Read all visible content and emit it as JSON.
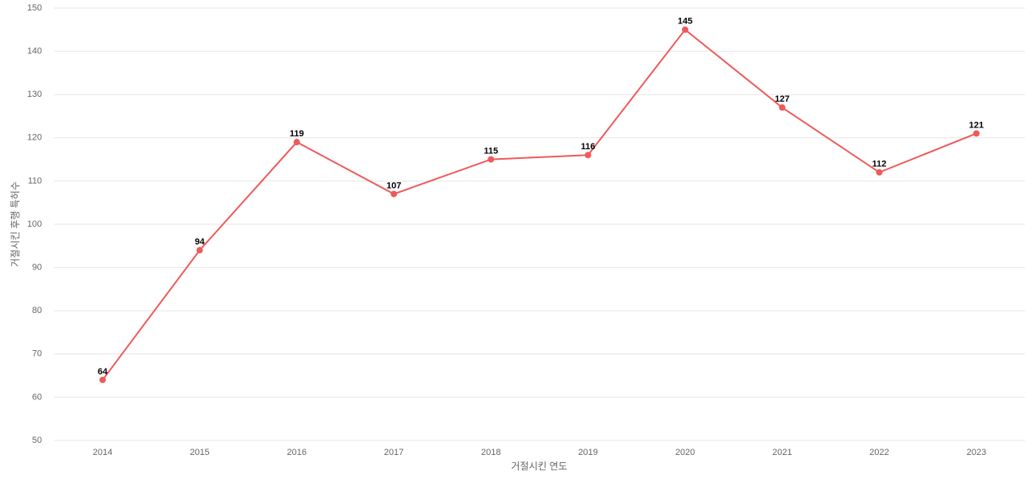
{
  "chart_data": {
    "type": "line",
    "x_label": "거절시킨 연도",
    "y_label": "거절시킨 후행 특허수",
    "categories": [
      "2014",
      "2015",
      "2016",
      "2017",
      "2018",
      "2019",
      "2020",
      "2021",
      "2022",
      "2023"
    ],
    "series": [
      {
        "name": "거절시킨 후행 특허수",
        "color": "#ef5a5a",
        "values": [
          64,
          94,
          119,
          107,
          115,
          116,
          145,
          127,
          112,
          121
        ]
      }
    ],
    "ylim": [
      50,
      150
    ],
    "yticks": [
      50,
      60,
      70,
      80,
      90,
      100,
      110,
      120,
      130,
      140,
      150
    ],
    "grid": true
  }
}
